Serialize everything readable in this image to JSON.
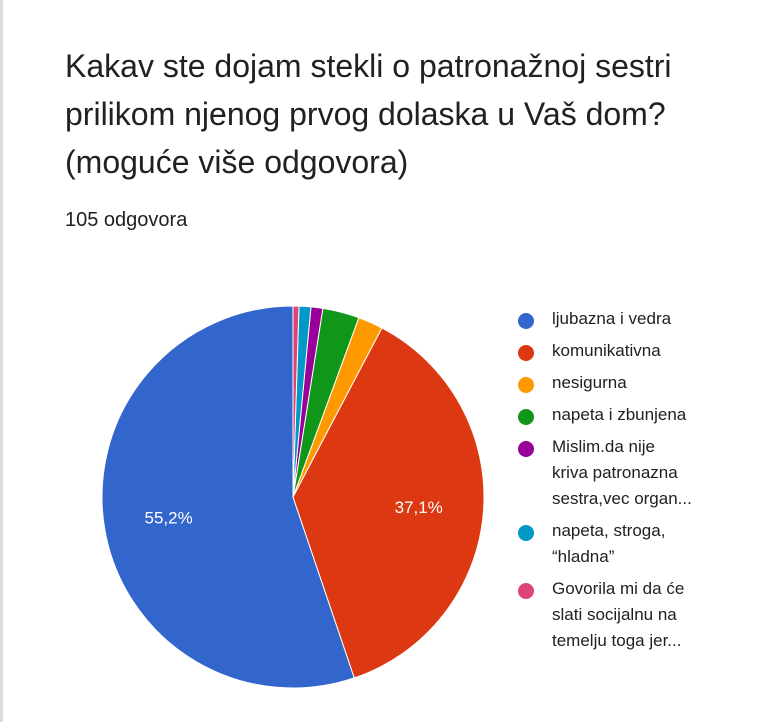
{
  "card": {
    "title": "Kakav ste dojam stekli o patronažnoj sestri prilikom njenog prvog dolaska u Vaš dom? (moguće više odgovora)",
    "response_count": "105 odgovora"
  },
  "chart_data": {
    "type": "pie",
    "title": "Kakav ste dojam stekli o patronažnoj sestri prilikom njenog prvog dolaska u Vaš dom? (moguće više odgovora)",
    "start_angle_deg": 90,
    "direction": "counterclockwise",
    "legend_position": "right",
    "slices": [
      {
        "label": "ljubazna i vedra",
        "value": 55.2,
        "display_label": "55,2%",
        "color": "#3366cc"
      },
      {
        "label": "komunikativna",
        "value": 37.1,
        "display_label": "37,1%",
        "color": "#dc3912"
      },
      {
        "label": "nesigurna",
        "value": 2.1,
        "display_label": "",
        "color": "#ff9900"
      },
      {
        "label": "napeta i zbunjena",
        "value": 3.1,
        "display_label": "",
        "color": "#109618"
      },
      {
        "label": "Mislim.da nije\nkriva patronazna\nsestra,vec organ...",
        "value": 1.0,
        "display_label": "",
        "color": "#990099"
      },
      {
        "label": "napeta, stroga,\n“hladna”",
        "value": 1.0,
        "display_label": "",
        "color": "#0099c6"
      },
      {
        "label": "Govorila mi da će\nslati socijalnu na\ntemelju toga jer...",
        "value": 0.5,
        "display_label": "",
        "color": "#dd4477"
      }
    ]
  }
}
